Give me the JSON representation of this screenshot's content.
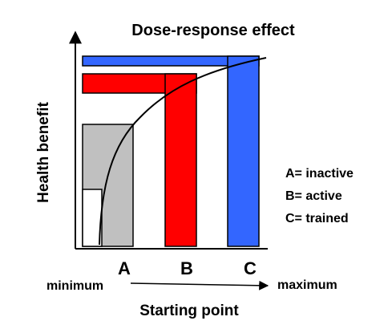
{
  "title": "Dose-response effect",
  "y_axis_label": "Health benefit",
  "x_axis_label": "Starting point",
  "x_scale": {
    "min_label": "minimum",
    "max_label": "maximum"
  },
  "levels": [
    {
      "marker": "A",
      "color": "#c0c0c0"
    },
    {
      "marker": "B",
      "color": "#ff0000"
    },
    {
      "marker": "C",
      "color": "#3366ff"
    }
  ],
  "legend": [
    {
      "text": "A= inactive"
    },
    {
      "text": "B= active"
    },
    {
      "text": "C= trained"
    }
  ]
}
